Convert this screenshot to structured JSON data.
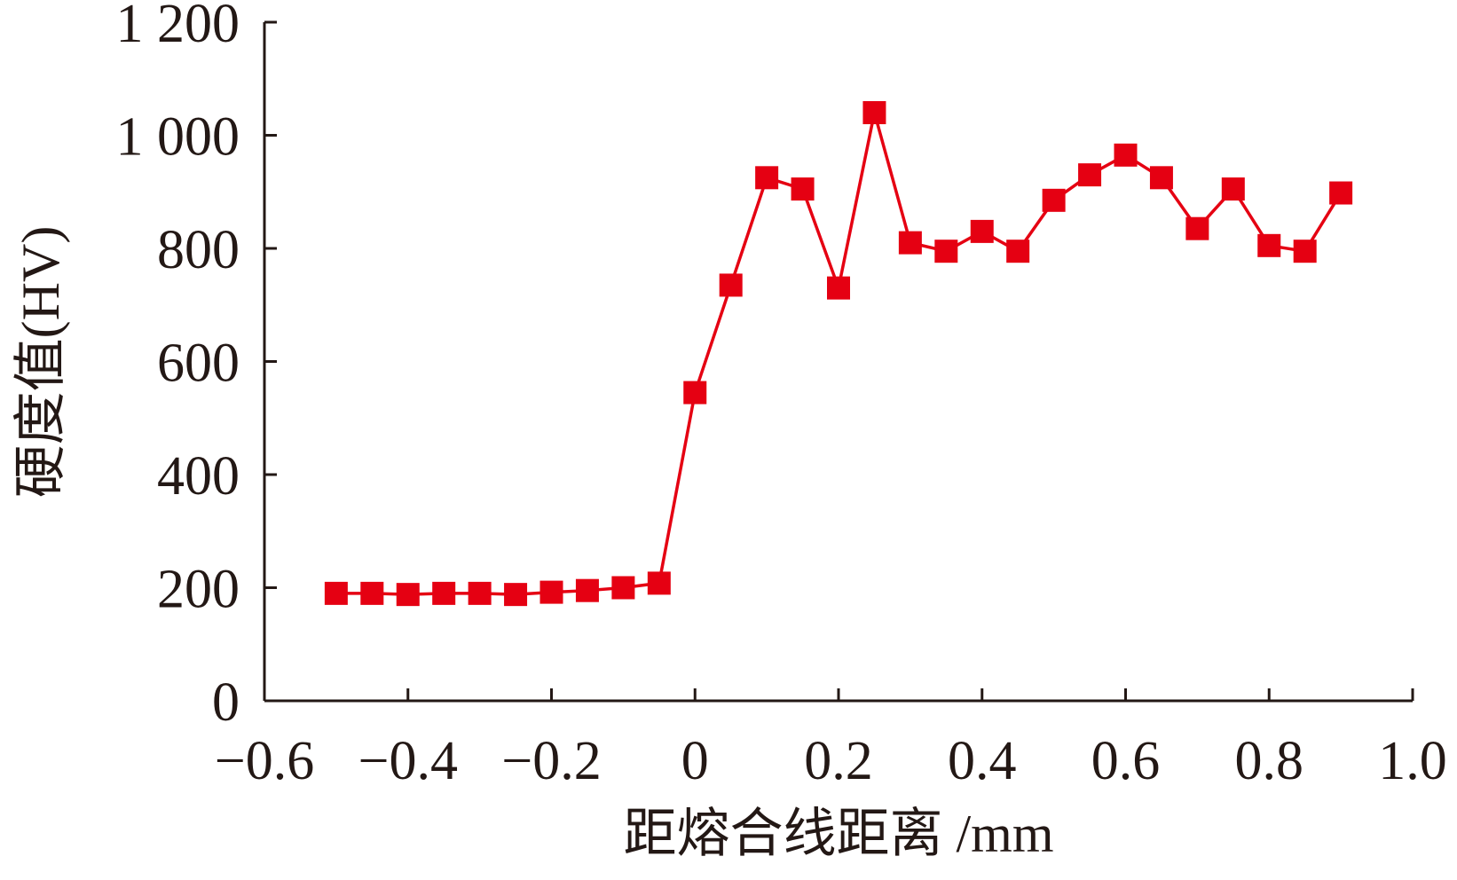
{
  "chart_data": {
    "type": "line",
    "x_label": "距熔合线距离 /mm",
    "y_label": "硬度值(HV)",
    "x": [
      -0.5,
      -0.45,
      -0.4,
      -0.35,
      -0.3,
      -0.25,
      -0.2,
      -0.15,
      -0.1,
      -0.05,
      0,
      0.05,
      0.1,
      0.15,
      0.2,
      0.25,
      0.3,
      0.35,
      0.4,
      0.45,
      0.5,
      0.55,
      0.6,
      0.65,
      0.7,
      0.75,
      0.8,
      0.85,
      0.9
    ],
    "series": [
      {
        "color": "#e50012",
        "values": [
          190,
          190,
          188,
          190,
          190,
          188,
          192,
          195,
          200,
          208,
          545,
          735,
          925,
          905,
          730,
          1040,
          810,
          795,
          830,
          795,
          885,
          930,
          965,
          925,
          835,
          905,
          805,
          795,
          898
        ]
      }
    ],
    "xlim": [
      -0.6,
      1.0
    ],
    "xticks": [
      {
        "value": -0.6,
        "label": "−0.6"
      },
      {
        "value": -0.4,
        "label": "−0.4"
      },
      {
        "value": -0.2,
        "label": "−0.2"
      },
      0,
      0.2,
      0.4,
      0.6,
      0.8,
      {
        "value": 1.0,
        "label": "1.0"
      }
    ],
    "ylim": [
      0,
      1200
    ],
    "yticks": [
      0,
      200,
      400,
      600,
      800,
      {
        "value": 1000,
        "label": "1 000"
      },
      {
        "value": 1200,
        "label": "1 200"
      }
    ],
    "grid": false
  }
}
